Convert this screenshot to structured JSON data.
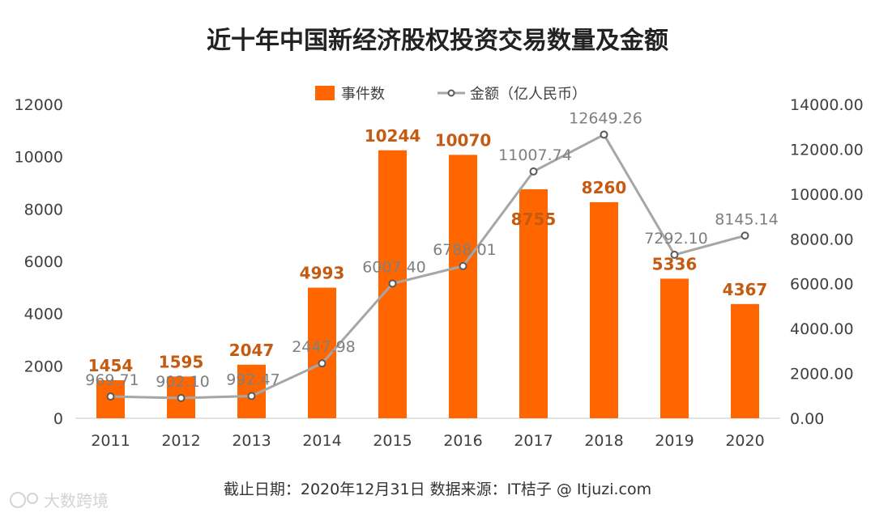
{
  "chart_data": {
    "type": "bar",
    "title": "近十年中国新经济股权投资交易数量及金额",
    "categories": [
      "2011",
      "2012",
      "2013",
      "2014",
      "2015",
      "2016",
      "2017",
      "2018",
      "2019",
      "2020"
    ],
    "series": [
      {
        "name": "事件数",
        "type": "bar",
        "axis": "left",
        "color": "#ff6600",
        "values": [
          1454,
          1595,
          2047,
          4993,
          10244,
          10070,
          8755,
          8260,
          5336,
          4367
        ],
        "labels": [
          "1454",
          "1595",
          "2047",
          "4993",
          "10244",
          "10070",
          "8755",
          "8260",
          "5336",
          "4367"
        ]
      },
      {
        "name": "金额（亿人民币）",
        "type": "line",
        "axis": "right",
        "color": "#a6a6a6",
        "values": [
          969.71,
          902.1,
          992.47,
          2447.98,
          6007.4,
          6788.01,
          11007.74,
          12649.26,
          7292.1,
          8145.14
        ],
        "labels": [
          "969.71",
          "902.10",
          "992.47",
          "2447.98",
          "6007.40",
          "6788.01",
          "11007.74",
          "12649.26",
          "7292.10",
          "8145.14"
        ]
      }
    ],
    "y_left": {
      "range": [
        0,
        12000
      ],
      "ticks": [
        "0",
        "2000",
        "4000",
        "6000",
        "8000",
        "10000",
        "12000"
      ]
    },
    "y_right": {
      "range": [
        0,
        14000
      ],
      "ticks": [
        "0.00",
        "2000.00",
        "4000.00",
        "6000.00",
        "8000.00",
        "10000.00",
        "12000.00",
        "14000.00"
      ]
    },
    "legend_position": "top-center",
    "grid": false
  },
  "footer": "截止日期：2020年12月31日      数据来源：IT桔子 @ Itjuzi.com",
  "watermark": "大数跨境"
}
